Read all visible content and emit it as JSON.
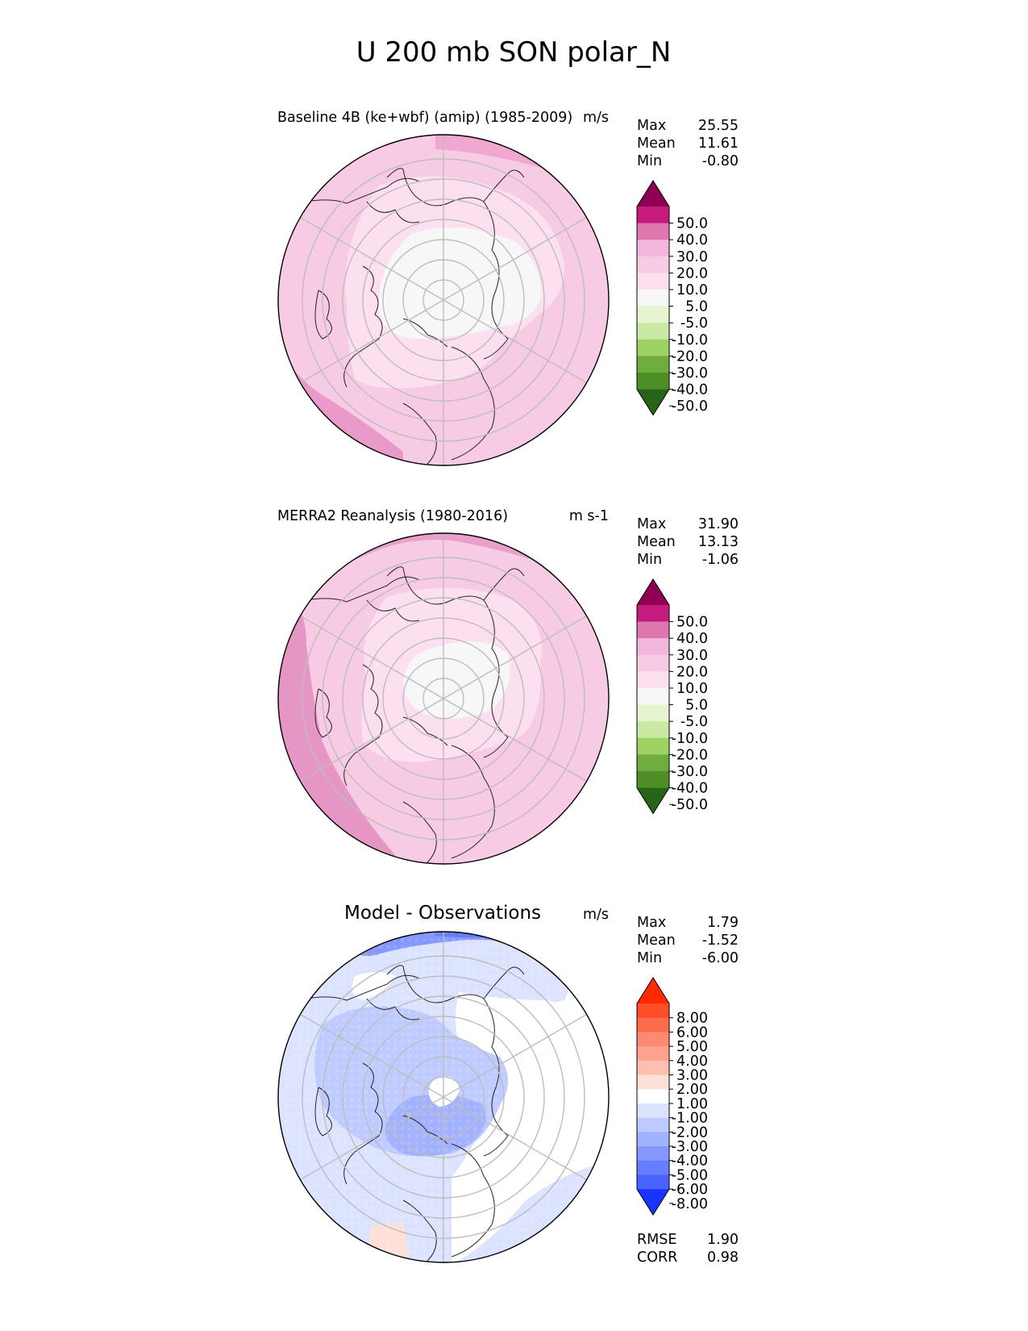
{
  "figure_title": "U 200 mb SON polar_N",
  "panels": [
    {
      "title": "Baseline 4B (ke+wbf) (amip) (1985-2009)",
      "units": "m/s",
      "stats": [
        {
          "label": "Max",
          "value": "25.55"
        },
        {
          "label": "Mean",
          "value": "11.61"
        },
        {
          "label": "Min",
          "value": "-0.80"
        }
      ]
    },
    {
      "title": "MERRA2 Reanalysis (1980-2016)",
      "units": "m s-1",
      "stats": [
        {
          "label": "Max",
          "value": "31.90"
        },
        {
          "label": "Mean",
          "value": "13.13"
        },
        {
          "label": "Min",
          "value": "-1.06"
        }
      ]
    },
    {
      "title": "Model - Observations",
      "units": "m/s",
      "stats": [
        {
          "label": "Max",
          "value": "1.79"
        },
        {
          "label": "Mean",
          "value": "-1.52"
        },
        {
          "label": "Min",
          "value": "-6.00"
        }
      ],
      "extra_stats": [
        {
          "label": "RMSE",
          "value": "1.90"
        },
        {
          "label": "CORR",
          "value": "0.98"
        }
      ]
    }
  ],
  "chart_data": [
    {
      "type": "heatmap",
      "projection": "north polar stereographic",
      "title": "Baseline 4B (ke+wbf) (amip) (1985-2009)",
      "units": "m/s",
      "colorbar_ticks": [
        "50.0",
        "40.0",
        "30.0",
        "20.0",
        "10.0",
        "5.0",
        "-5.0",
        "-10.0",
        "-20.0",
        "-30.0",
        "-40.0",
        "-50.0"
      ],
      "colorbar_colors": [
        "#8e0152",
        "#c51b7d",
        "#de77ae",
        "#f1b6da",
        "#f7cbe3",
        "#fde0ef",
        "#f7f7f7",
        "#e6f5d0",
        "#c9e9a4",
        "#9fd265",
        "#6fac3e",
        "#4d8e26",
        "#276419"
      ],
      "region_levels": {
        "outer_ring_ne": 20,
        "outer_ring_sw": 20,
        "mid": 10,
        "inner": 5,
        "pole": 0
      }
    },
    {
      "type": "heatmap",
      "projection": "north polar stereographic",
      "title": "MERRA2 Reanalysis (1980-2016)",
      "units": "m s-1",
      "colorbar_ticks": [
        "50.0",
        "40.0",
        "30.0",
        "20.0",
        "10.0",
        "5.0",
        "-5.0",
        "-10.0",
        "-20.0",
        "-30.0",
        "-40.0",
        "-50.0"
      ],
      "colorbar_colors": [
        "#8e0152",
        "#c51b7d",
        "#de77ae",
        "#f1b6da",
        "#f7cbe3",
        "#fde0ef",
        "#f7f7f7",
        "#e6f5d0",
        "#c9e9a4",
        "#9fd265",
        "#6fac3e",
        "#4d8e26",
        "#276419"
      ],
      "region_levels": {
        "outer_ring_ne": 20,
        "outer_ring_sw": 20,
        "mid": 10,
        "inner": 5,
        "pole": 0
      }
    },
    {
      "type": "heatmap",
      "projection": "north polar stereographic",
      "title": "Model - Observations",
      "units": "m/s",
      "colorbar_ticks": [
        "8.00",
        "6.00",
        "5.00",
        "4.00",
        "3.00",
        "2.00",
        "1.00",
        "-1.00",
        "-2.00",
        "-3.00",
        "-4.00",
        "-5.00",
        "-6.00",
        "-8.00"
      ],
      "colorbar_colors": [
        "#ff2a00",
        "#ff4d26",
        "#ff6b4d",
        "#ff8a73",
        "#ffa38f",
        "#ffbfb0",
        "#ffe0d8",
        "#ffffff",
        "#dce3ff",
        "#bfcbff",
        "#a3b2ff",
        "#8598ff",
        "#667dff",
        "#4a62ff",
        "#1a33ff"
      ],
      "region_levels": {
        "background": -1,
        "band": -2,
        "core": -3,
        "edge_band": -4,
        "warm_patch": 1
      }
    }
  ]
}
